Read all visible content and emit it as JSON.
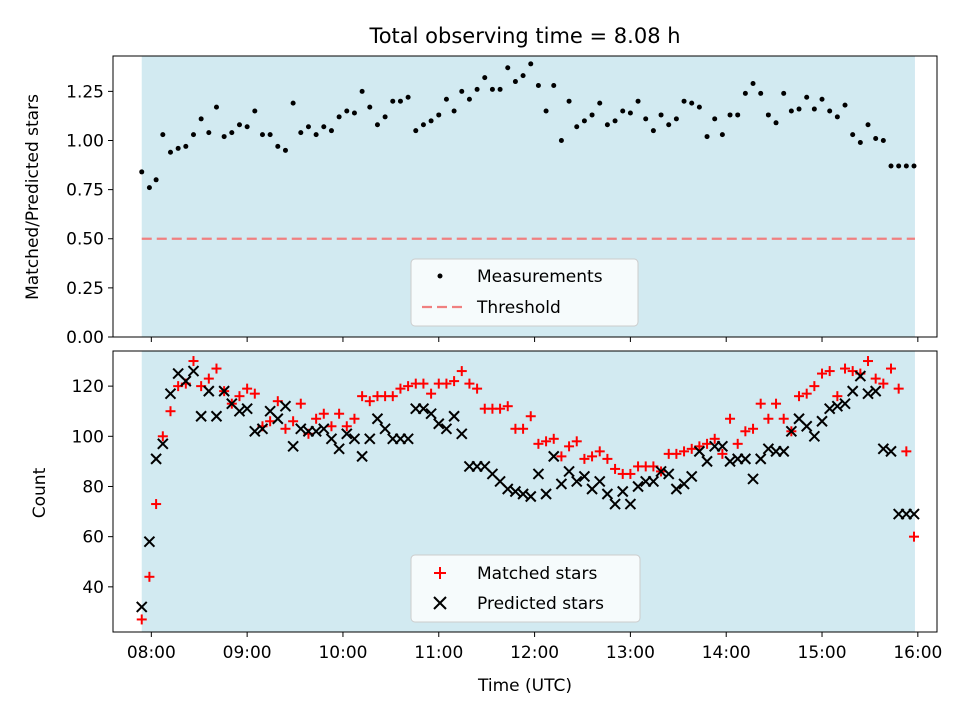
{
  "title": "Total observing time = 8.08 h",
  "colors": {
    "shade": "#add8e6",
    "measurement": "#000000",
    "threshold": "#f08080",
    "matched": "#ff0000",
    "predicted": "#000000"
  },
  "chart_data": [
    {
      "type": "scatter",
      "ylabel": "Matched/Predicted stars",
      "xlim": [
        7.6,
        16.2
      ],
      "ylim": [
        0.0,
        1.43
      ],
      "yticks": [
        0.0,
        0.25,
        0.5,
        0.75,
        1.0,
        1.25
      ],
      "ytick_labels": [
        "0.00",
        "0.25",
        "0.50",
        "0.75",
        "1.00",
        "1.25"
      ],
      "shade_range": [
        7.9,
        15.97
      ],
      "grid": false,
      "legend_position": "lower-center",
      "legend": [
        "Measurements",
        "Threshold"
      ],
      "threshold": 0.5,
      "series": [
        {
          "name": "Measurements",
          "x": [
            7.9,
            7.98,
            8.05,
            8.12,
            8.2,
            8.28,
            8.36,
            8.44,
            8.52,
            8.6,
            8.68,
            8.76,
            8.84,
            8.92,
            9.0,
            9.08,
            9.16,
            9.24,
            9.32,
            9.4,
            9.48,
            9.56,
            9.64,
            9.72,
            9.8,
            9.88,
            9.96,
            10.04,
            10.12,
            10.2,
            10.28,
            10.36,
            10.44,
            10.52,
            10.6,
            10.68,
            10.76,
            10.84,
            10.92,
            11.0,
            11.08,
            11.16,
            11.24,
            11.32,
            11.4,
            11.48,
            11.56,
            11.64,
            11.72,
            11.8,
            11.88,
            11.96,
            12.04,
            12.12,
            12.2,
            12.28,
            12.36,
            12.44,
            12.52,
            12.6,
            12.68,
            12.76,
            12.84,
            12.92,
            13.0,
            13.08,
            13.16,
            13.24,
            13.32,
            13.4,
            13.48,
            13.56,
            13.64,
            13.72,
            13.8,
            13.88,
            13.96,
            14.04,
            14.12,
            14.2,
            14.28,
            14.36,
            14.44,
            14.52,
            14.6,
            14.68,
            14.76,
            14.84,
            14.92,
            15.0,
            15.08,
            15.16,
            15.24,
            15.32,
            15.4,
            15.48,
            15.56,
            15.64,
            15.72,
            15.8,
            15.88,
            15.96
          ],
          "y": [
            0.84,
            0.76,
            0.8,
            1.03,
            0.94,
            0.96,
            0.97,
            1.03,
            1.11,
            1.04,
            1.17,
            1.02,
            1.04,
            1.08,
            1.07,
            1.15,
            1.03,
            1.03,
            0.97,
            0.95,
            1.19,
            1.04,
            1.07,
            1.03,
            1.07,
            1.05,
            1.12,
            1.15,
            1.14,
            1.25,
            1.17,
            1.08,
            1.12,
            1.2,
            1.2,
            1.22,
            1.05,
            1.08,
            1.1,
            1.13,
            1.21,
            1.15,
            1.25,
            1.21,
            1.26,
            1.32,
            1.26,
            1.26,
            1.37,
            1.3,
            1.33,
            1.39,
            1.28,
            1.15,
            1.28,
            1.0,
            1.2,
            1.07,
            1.1,
            1.13,
            1.19,
            1.08,
            1.1,
            1.15,
            1.14,
            1.2,
            1.11,
            1.05,
            1.13,
            1.08,
            1.11,
            1.2,
            1.19,
            1.17,
            1.02,
            1.11,
            1.03,
            1.13,
            1.13,
            1.24,
            1.29,
            1.24,
            1.13,
            1.09,
            1.24,
            1.15,
            1.16,
            1.22,
            1.16,
            1.21,
            1.15,
            1.12,
            1.18,
            1.03,
            0.99,
            1.08,
            1.01,
            1.0,
            0.87,
            0.87,
            0.87,
            0.87
          ]
        },
        {
          "name": "Threshold",
          "y": 0.5
        }
      ]
    },
    {
      "type": "scatter",
      "ylabel": "Count",
      "xlabel": "Time (UTC)",
      "xlim": [
        7.6,
        16.2
      ],
      "ylim": [
        22,
        134
      ],
      "yticks": [
        40,
        60,
        80,
        100,
        120
      ],
      "xticks": [
        8,
        9,
        10,
        11,
        12,
        13,
        14,
        15,
        16
      ],
      "xtick_labels": [
        "08:00",
        "09:00",
        "10:00",
        "11:00",
        "12:00",
        "13:00",
        "14:00",
        "15:00",
        "16:00"
      ],
      "shade_range": [
        7.9,
        15.97
      ],
      "grid": false,
      "legend_position": "lower-center",
      "legend": [
        "Matched stars",
        "Predicted stars"
      ],
      "series": [
        {
          "name": "Matched stars",
          "x": [
            7.9,
            7.98,
            8.05,
            8.12,
            8.2,
            8.28,
            8.36,
            8.44,
            8.52,
            8.6,
            8.68,
            8.76,
            8.84,
            8.92,
            9.0,
            9.08,
            9.16,
            9.24,
            9.32,
            9.4,
            9.48,
            9.56,
            9.64,
            9.72,
            9.8,
            9.88,
            9.96,
            10.04,
            10.12,
            10.2,
            10.28,
            10.36,
            10.44,
            10.52,
            10.6,
            10.68,
            10.76,
            10.84,
            10.92,
            11.0,
            11.08,
            11.16,
            11.24,
            11.32,
            11.4,
            11.48,
            11.56,
            11.64,
            11.72,
            11.8,
            11.88,
            11.96,
            12.04,
            12.12,
            12.2,
            12.28,
            12.36,
            12.44,
            12.52,
            12.6,
            12.68,
            12.76,
            12.84,
            12.92,
            13.0,
            13.08,
            13.16,
            13.24,
            13.32,
            13.4,
            13.48,
            13.56,
            13.64,
            13.72,
            13.8,
            13.88,
            13.96,
            14.04,
            14.12,
            14.2,
            14.28,
            14.36,
            14.44,
            14.52,
            14.6,
            14.68,
            14.76,
            14.84,
            14.92,
            15.0,
            15.08,
            15.16,
            15.24,
            15.32,
            15.4,
            15.48,
            15.56,
            15.64,
            15.72,
            15.8,
            15.88,
            15.96
          ],
          "y": [
            27,
            44,
            73,
            100,
            110,
            120,
            121,
            130,
            120,
            123,
            127,
            118,
            113,
            116,
            119,
            117,
            104,
            106,
            114,
            103,
            106,
            113,
            101,
            107,
            109,
            104,
            109,
            104,
            107,
            116,
            114,
            116,
            116,
            116,
            119,
            120,
            121,
            121,
            117,
            121,
            121,
            122,
            126,
            121,
            119,
            111,
            111,
            111,
            112,
            103,
            103,
            108,
            97,
            98,
            99,
            92,
            96,
            98,
            91,
            92,
            94,
            91,
            87,
            85,
            85,
            88,
            88,
            88,
            86,
            93,
            93,
            94,
            95,
            96,
            97,
            99,
            93,
            107,
            97,
            102,
            103,
            113,
            107,
            113,
            107,
            102,
            116,
            117,
            120,
            125,
            126,
            116,
            127,
            126,
            125,
            130,
            123,
            121,
            127,
            119,
            94,
            60
          ]
        },
        {
          "name": "Predicted stars",
          "x": [
            7.9,
            7.98,
            8.05,
            8.12,
            8.2,
            8.28,
            8.36,
            8.44,
            8.52,
            8.6,
            8.68,
            8.76,
            8.84,
            8.92,
            9.0,
            9.08,
            9.16,
            9.24,
            9.32,
            9.4,
            9.48,
            9.56,
            9.64,
            9.72,
            9.8,
            9.88,
            9.96,
            10.04,
            10.12,
            10.2,
            10.28,
            10.36,
            10.44,
            10.52,
            10.6,
            10.68,
            10.76,
            10.84,
            10.92,
            11.0,
            11.08,
            11.16,
            11.24,
            11.32,
            11.4,
            11.48,
            11.56,
            11.64,
            11.72,
            11.8,
            11.88,
            11.96,
            12.04,
            12.12,
            12.2,
            12.28,
            12.36,
            12.44,
            12.52,
            12.6,
            12.68,
            12.76,
            12.84,
            12.92,
            13.0,
            13.08,
            13.16,
            13.24,
            13.32,
            13.4,
            13.48,
            13.56,
            13.64,
            13.72,
            13.8,
            13.88,
            13.96,
            14.04,
            14.12,
            14.2,
            14.28,
            14.36,
            14.44,
            14.52,
            14.6,
            14.68,
            14.76,
            14.84,
            14.92,
            15.0,
            15.08,
            15.16,
            15.24,
            15.32,
            15.4,
            15.48,
            15.56,
            15.64,
            15.72,
            15.8,
            15.88,
            15.96
          ],
          "y": [
            32,
            58,
            91,
            97,
            117,
            125,
            122,
            126,
            108,
            118,
            108,
            118,
            113,
            110,
            111,
            102,
            103,
            110,
            107,
            112,
            96,
            103,
            102,
            102,
            103,
            99,
            95,
            101,
            99,
            92,
            99,
            107,
            103,
            99,
            99,
            99,
            111,
            111,
            109,
            105,
            103,
            108,
            101,
            88,
            88,
            88,
            85,
            82,
            79,
            78,
            77,
            76,
            85,
            77,
            92,
            81,
            86,
            82,
            84,
            79,
            82,
            77,
            73,
            78,
            73,
            80,
            82,
            82,
            86,
            85,
            79,
            81,
            84,
            94,
            90,
            96,
            96,
            90,
            91,
            91,
            83,
            91,
            95,
            94,
            94,
            102,
            107,
            104,
            100,
            106,
            111,
            112,
            113,
            118,
            124,
            117,
            118,
            95,
            94,
            69,
            69,
            69
          ]
        }
      ]
    }
  ]
}
